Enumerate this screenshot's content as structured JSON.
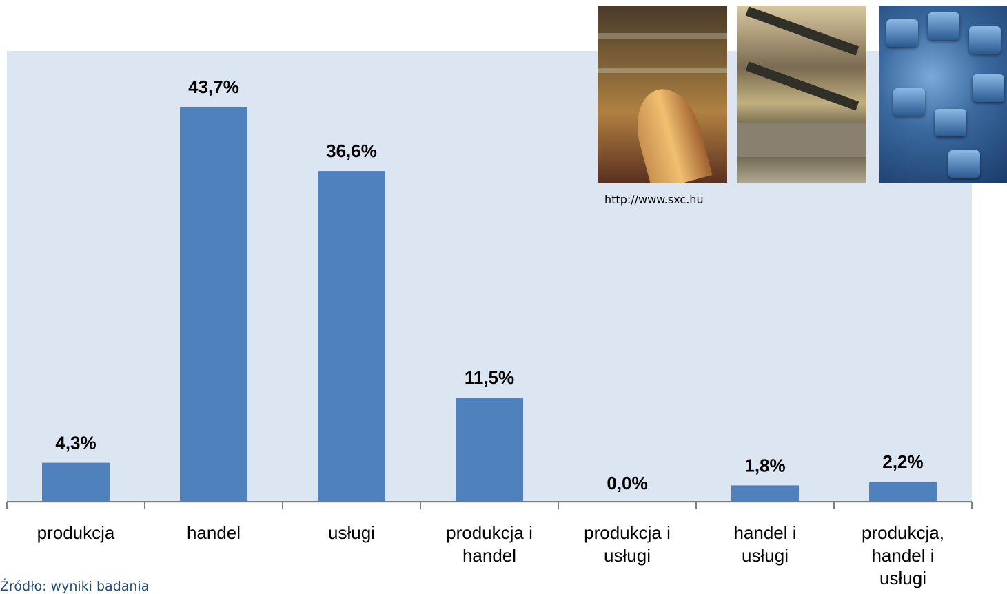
{
  "chart_data": {
    "type": "bar",
    "categories": [
      [
        "produkcja"
      ],
      [
        "handel"
      ],
      [
        "usługi"
      ],
      [
        "produkcja i",
        "handel"
      ],
      [
        "produkcja i",
        "usługi"
      ],
      [
        "handel i",
        "usługi"
      ],
      [
        "produkcja,",
        "handel i",
        "usługi"
      ]
    ],
    "values": [
      4.3,
      43.7,
      36.6,
      11.5,
      0.0,
      1.8,
      2.2
    ],
    "value_labels": [
      "4,3%",
      "43,7%",
      "36,6%",
      "11,5%",
      "0,0%",
      "1,8%",
      "2,2%"
    ],
    "ylim": [
      0,
      50
    ],
    "grid": false,
    "bar_color": "#4f81bd",
    "plot_background": "#dce6f2"
  },
  "images": {
    "photo_1": "factory-photo",
    "photo_2": "shopping-mall-photo",
    "photo_3": "keyboard-photo",
    "credit": "http://www.sxc.hu"
  },
  "footer": {
    "source": "Źródło: wyniki badania"
  }
}
